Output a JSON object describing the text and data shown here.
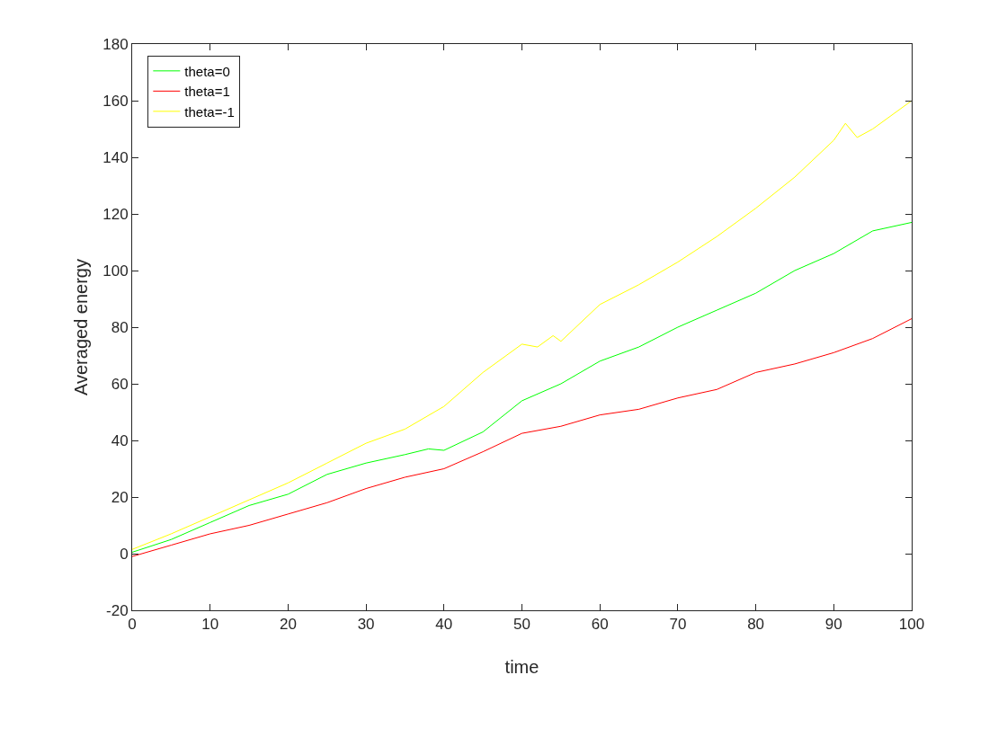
{
  "chart_data": {
    "type": "line",
    "xlabel": "time",
    "ylabel": "Averaged energy",
    "xlim": [
      0,
      100
    ],
    "xticks": [
      0,
      10,
      20,
      30,
      40,
      50,
      60,
      70,
      80,
      90,
      100
    ],
    "ylim": [
      -20,
      180
    ],
    "yticks": [
      -20,
      0,
      20,
      40,
      60,
      80,
      100,
      120,
      140,
      160,
      180
    ],
    "grid": false,
    "legend": "top left",
    "marker": "none",
    "line_style": "solid",
    "series": [
      {
        "name": "theta=0",
        "color": "#00ff00",
        "x": [
          0,
          5,
          10,
          15,
          20,
          25,
          30,
          35,
          38,
          40,
          45,
          50,
          55,
          60,
          65,
          70,
          75,
          80,
          85,
          90,
          95,
          100
        ],
        "values": [
          0.5,
          5,
          11,
          17,
          21,
          28,
          32,
          35,
          37,
          36.5,
          43,
          54,
          60,
          68,
          73,
          80,
          86,
          92,
          100,
          106,
          114,
          117
        ]
      },
      {
        "name": "theta=1",
        "color": "#ff0000",
        "x": [
          0,
          5,
          10,
          15,
          20,
          25,
          30,
          35,
          40,
          45,
          50,
          55,
          60,
          65,
          70,
          75,
          80,
          85,
          90,
          95,
          100
        ],
        "values": [
          -1,
          3,
          7,
          10,
          14,
          18,
          23,
          27,
          30,
          36,
          42.5,
          45,
          49,
          51,
          55,
          58,
          64,
          67,
          71,
          76,
          83
        ]
      },
      {
        "name": "theta=-1",
        "color": "#ffff00",
        "x": [
          0,
          5,
          10,
          15,
          20,
          25,
          30,
          35,
          40,
          45,
          50,
          52,
          54,
          55,
          60,
          65,
          70,
          75,
          80,
          85,
          90,
          91.5,
          93,
          95,
          100
        ],
        "values": [
          1.5,
          7,
          13,
          19,
          25,
          32,
          39,
          44,
          52,
          64,
          74,
          73,
          77,
          75,
          88,
          95,
          103,
          112,
          122,
          133,
          146,
          152,
          147,
          150,
          160
        ]
      }
    ]
  }
}
